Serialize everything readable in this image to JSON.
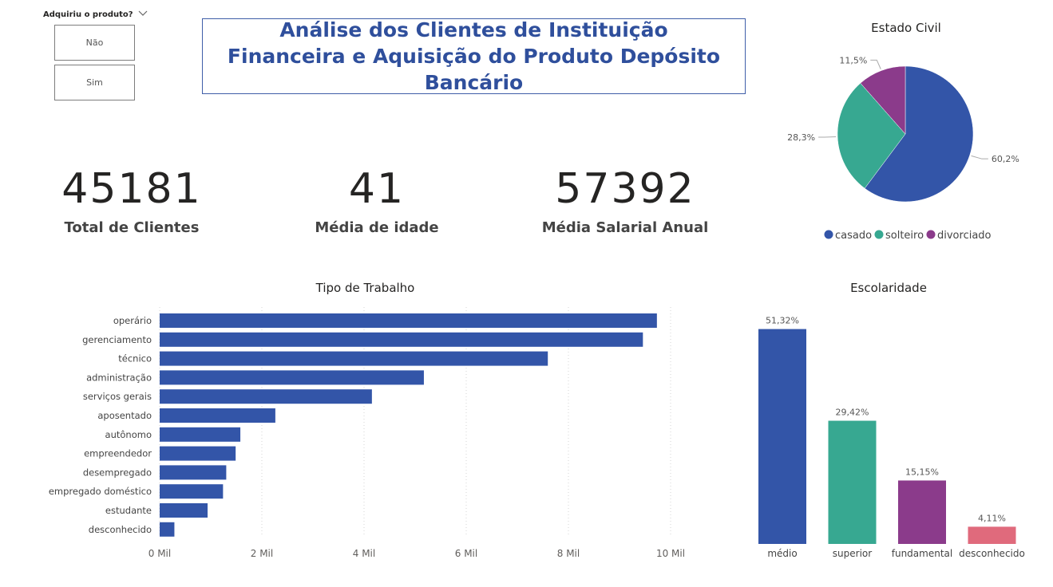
{
  "slicer": {
    "title": "Adquiriu o produto?",
    "options": [
      "Não",
      "Sim"
    ]
  },
  "header": {
    "title": "Análise dos Clientes de Instituição Financeira e Aquisição do Produto Depósito Bancário"
  },
  "kpis": [
    {
      "value": "45181",
      "label": "Total de Clientes"
    },
    {
      "value": "41",
      "label": "Média de idade"
    },
    {
      "value": "57392",
      "label": "Média Salarial Anual"
    }
  ],
  "colors": {
    "blue": "#3355a8",
    "teal": "#37a891",
    "purple": "#8b3b8b",
    "pink": "#e06a7c",
    "accent": "#2f4f9c"
  },
  "chart_data": [
    {
      "type": "pie",
      "title": "Estado Civil",
      "categories": [
        "casado",
        "solteiro",
        "divorciado"
      ],
      "values": [
        60.2,
        28.3,
        11.5
      ],
      "labels": [
        "60,2%",
        "28,3%",
        "11,5%"
      ],
      "colors": [
        "#3355a8",
        "#37a891",
        "#8b3b8b"
      ],
      "legend": "bottom"
    },
    {
      "type": "bar",
      "orientation": "horizontal",
      "title": "Tipo de Trabalho",
      "categories": [
        "operário",
        "gerenciamento",
        "técnico",
        "administração",
        "serviços gerais",
        "aposentado",
        "autônomo",
        "empreendedor",
        "desempregado",
        "empregado doméstico",
        "estudante",
        "desconhecido"
      ],
      "values": [
        9732,
        9458,
        7597,
        5171,
        4154,
        2264,
        1579,
        1487,
        1303,
        1240,
        938,
        288
      ],
      "xticks": [
        "0 Mil",
        "2 Mil",
        "4 Mil",
        "6 Mil",
        "8 Mil",
        "10 Mil"
      ],
      "xlim": [
        0,
        10000
      ],
      "grid": true
    },
    {
      "type": "bar",
      "title": "Escolaridade",
      "categories": [
        "médio",
        "superior",
        "fundamental",
        "desconhecido"
      ],
      "values": [
        51.32,
        29.42,
        15.15,
        4.11
      ],
      "labels": [
        "51,32%",
        "29,42%",
        "15,15%",
        "4,11%"
      ],
      "colors": [
        "#3355a8",
        "#37a891",
        "#8b3b8b",
        "#e06a7c"
      ]
    }
  ]
}
